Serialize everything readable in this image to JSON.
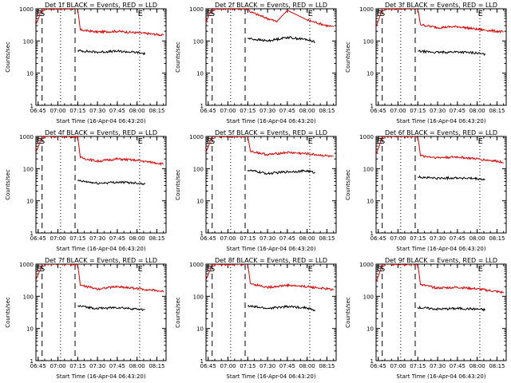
{
  "figure": {
    "xlabel_template": "Start Time (16-Apr-04 06:43:20)",
    "ylabel": "Counts/sec"
  },
  "colors": {
    "events": "#000000",
    "lld": "#e00000",
    "axis": "#000000"
  },
  "chart_data": [
    {
      "type": "line",
      "title": "Det 1f BLACK = Events, RED = LLD",
      "xlabel": "Start Time (16-Apr-04 06:43:20)",
      "ylabel": "Counts/sec",
      "x_ticks": [
        "06:45",
        "07:00",
        "07:15",
        "07:30",
        "07:45",
        "08:00",
        "08:15"
      ],
      "y_ticks": [
        "1",
        "10",
        "100",
        "1000"
      ],
      "y_scale": "log",
      "ylim": [
        1,
        1000
      ],
      "markers": [
        "E",
        "S",
        "E"
      ],
      "series": [
        {
          "color": "red",
          "x": [
            "06:43",
            "06:46",
            "06:48",
            "07:15",
            "07:17",
            "07:30",
            "07:45",
            "08:00",
            "08:15",
            "08:20"
          ],
          "values": [
            300,
            600,
            1000,
            1000,
            220,
            190,
            200,
            180,
            160,
            150
          ]
        },
        {
          "color": "black",
          "x": [
            "07:15",
            "07:30",
            "07:45",
            "08:00",
            "08:06"
          ],
          "values": [
            50,
            45,
            48,
            44,
            40
          ]
        }
      ]
    },
    {
      "type": "line",
      "title": "Det 2f BLACK = Events, RED = LLD",
      "xlabel": "Start Time (16-Apr-04 06:43:20)",
      "ylabel": "Counts/sec",
      "x_ticks": [
        "06:45",
        "07:00",
        "07:15",
        "07:30",
        "07:45",
        "08:00",
        "08:15"
      ],
      "y_ticks": [
        "1",
        "10",
        "100",
        "1000"
      ],
      "y_scale": "log",
      "ylim": [
        1,
        1000
      ],
      "markers": [
        "E",
        "S",
        "E"
      ],
      "series": [
        {
          "color": "red",
          "x": [
            "06:43",
            "06:46",
            "06:48",
            "07:15",
            "07:17",
            "07:30",
            "07:37",
            "07:45",
            "08:00",
            "08:15",
            "08:20"
          ],
          "values": [
            350,
            700,
            1000,
            1000,
            800,
            500,
            400,
            900,
            450,
            300,
            270
          ]
        },
        {
          "color": "black",
          "x": [
            "07:15",
            "07:30",
            "07:45",
            "08:00",
            "08:06"
          ],
          "values": [
            120,
            100,
            130,
            110,
            95
          ]
        }
      ]
    },
    {
      "type": "line",
      "title": "Det 3f BLACK = Events, RED = LLD",
      "xlabel": "Start Time (16-Apr-04 06:43:20)",
      "ylabel": "Counts/sec",
      "x_ticks": [
        "06:45",
        "07:00",
        "07:15",
        "07:30",
        "07:45",
        "08:00",
        "08:15"
      ],
      "y_ticks": [
        "1",
        "10",
        "100",
        "1000"
      ],
      "y_scale": "log",
      "ylim": [
        1,
        1000
      ],
      "markers": [
        "E",
        "S",
        "E"
      ],
      "series": [
        {
          "color": "red",
          "x": [
            "06:43",
            "06:46",
            "06:48",
            "07:15",
            "07:17",
            "07:30",
            "07:45",
            "08:00",
            "08:15",
            "08:20"
          ],
          "values": [
            250,
            550,
            1000,
            1000,
            320,
            260,
            280,
            230,
            200,
            190
          ]
        },
        {
          "color": "black",
          "x": [
            "07:15",
            "07:30",
            "07:45",
            "08:00",
            "08:06"
          ],
          "values": [
            48,
            44,
            46,
            42,
            38
          ]
        }
      ]
    },
    {
      "type": "line",
      "title": "Det 4f BLACK = Events, RED = LLD",
      "xlabel": "Start Time (16-Apr-04 06:43:20)",
      "ylabel": "Counts/sec",
      "x_ticks": [
        "06:45",
        "07:00",
        "07:15",
        "07:30",
        "07:45",
        "08:00",
        "08:15"
      ],
      "y_ticks": [
        "1",
        "10",
        "100",
        "1000"
      ],
      "y_scale": "log",
      "ylim": [
        1,
        1000
      ],
      "markers": [
        "E",
        "S",
        "E"
      ],
      "series": [
        {
          "color": "red",
          "x": [
            "06:43",
            "06:46",
            "06:48",
            "07:15",
            "07:17",
            "07:30",
            "07:45",
            "08:00",
            "08:15",
            "08:20"
          ],
          "values": [
            300,
            600,
            1000,
            1000,
            220,
            170,
            200,
            180,
            150,
            140
          ]
        },
        {
          "color": "black",
          "x": [
            "07:15",
            "07:30",
            "07:45",
            "08:00",
            "08:06"
          ],
          "values": [
            42,
            35,
            38,
            36,
            34
          ]
        }
      ]
    },
    {
      "type": "line",
      "title": "Det 5f BLACK = Events, RED = LLD",
      "xlabel": "Start Time (16-Apr-04 06:43:20)",
      "ylabel": "Counts/sec",
      "x_ticks": [
        "06:45",
        "07:00",
        "07:15",
        "07:30",
        "07:45",
        "08:00",
        "08:15"
      ],
      "y_ticks": [
        "1",
        "10",
        "100",
        "1000"
      ],
      "y_scale": "log",
      "ylim": [
        1,
        1000
      ],
      "markers": [
        "E",
        "S",
        "E"
      ],
      "series": [
        {
          "color": "red",
          "x": [
            "06:43",
            "06:46",
            "06:48",
            "07:15",
            "07:17",
            "07:30",
            "07:45",
            "08:00",
            "08:15",
            "08:20"
          ],
          "values": [
            300,
            600,
            1000,
            1000,
            350,
            270,
            320,
            290,
            250,
            230
          ]
        },
        {
          "color": "black",
          "x": [
            "07:15",
            "07:30",
            "07:45",
            "08:00",
            "08:06"
          ],
          "values": [
            90,
            70,
            80,
            85,
            75
          ]
        }
      ]
    },
    {
      "type": "line",
      "title": "Det 6f BLACK = Events, RED = LLD",
      "xlabel": "Start Time (16-Apr-04 06:43:20)",
      "ylabel": "Counts/sec",
      "x_ticks": [
        "06:45",
        "07:00",
        "07:15",
        "07:30",
        "07:45",
        "08:00",
        "08:15"
      ],
      "y_ticks": [
        "1",
        "10",
        "100",
        "1000"
      ],
      "y_scale": "log",
      "ylim": [
        1,
        1000
      ],
      "markers": [
        "E",
        "S",
        "E"
      ],
      "series": [
        {
          "color": "red",
          "x": [
            "06:43",
            "06:46",
            "06:48",
            "07:15",
            "07:17",
            "07:30",
            "07:45",
            "08:00",
            "08:15",
            "08:20"
          ],
          "values": [
            250,
            550,
            1000,
            1000,
            250,
            220,
            230,
            200,
            170,
            160
          ]
        },
        {
          "color": "black",
          "x": [
            "07:15",
            "07:30",
            "07:45",
            "08:00",
            "08:06"
          ],
          "values": [
            55,
            50,
            52,
            48,
            45
          ]
        }
      ]
    },
    {
      "type": "line",
      "title": "Det 7f BLACK = Events, RED = LLD",
      "xlabel": "Start Time (16-Apr-04 06:43:20)",
      "ylabel": "Counts/sec",
      "x_ticks": [
        "06:45",
        "07:00",
        "07:15",
        "07:30",
        "07:45",
        "08:00",
        "08:15"
      ],
      "y_ticks": [
        "1",
        "10",
        "100",
        "1000"
      ],
      "y_scale": "log",
      "ylim": [
        1,
        1000
      ],
      "markers": [
        "E",
        "S",
        "E"
      ],
      "series": [
        {
          "color": "red",
          "x": [
            "06:43",
            "06:46",
            "06:48",
            "07:15",
            "07:17",
            "07:30",
            "07:45",
            "08:00",
            "08:15",
            "08:20"
          ],
          "values": [
            300,
            600,
            1000,
            1000,
            220,
            170,
            200,
            175,
            150,
            140
          ]
        },
        {
          "color": "black",
          "x": [
            "07:15",
            "07:30",
            "07:45",
            "08:00",
            "08:06"
          ],
          "values": [
            50,
            42,
            45,
            40,
            38
          ]
        }
      ]
    },
    {
      "type": "line",
      "title": "Det 8f BLACK = Events, RED = LLD",
      "xlabel": "Start Time (16-Apr-04 06:43:20)",
      "ylabel": "Counts/sec",
      "x_ticks": [
        "06:45",
        "07:00",
        "07:15",
        "07:30",
        "07:45",
        "08:00",
        "08:15"
      ],
      "y_ticks": [
        "1",
        "10",
        "100",
        "1000"
      ],
      "y_scale": "log",
      "ylim": [
        1,
        1000
      ],
      "markers": [
        "E",
        "S",
        "E"
      ],
      "series": [
        {
          "color": "red",
          "x": [
            "06:43",
            "06:46",
            "06:48",
            "07:15",
            "07:17",
            "07:30",
            "07:45",
            "08:00",
            "08:15",
            "08:20"
          ],
          "values": [
            300,
            600,
            1000,
            1000,
            250,
            190,
            220,
            200,
            170,
            160
          ]
        },
        {
          "color": "black",
          "x": [
            "07:15",
            "07:30",
            "07:45",
            "08:00",
            "08:06"
          ],
          "values": [
            50,
            42,
            48,
            44,
            35
          ]
        }
      ]
    },
    {
      "type": "line",
      "title": "Det 9f BLACK = Events, RED = LLD",
      "xlabel": "Start Time (16-Apr-04 06:43:20)",
      "ylabel": "Counts/sec",
      "x_ticks": [
        "06:45",
        "07:00",
        "07:15",
        "07:30",
        "07:45",
        "08:00",
        "08:15"
      ],
      "y_ticks": [
        "1",
        "10",
        "100",
        "1000"
      ],
      "y_scale": "log",
      "ylim": [
        1,
        1000
      ],
      "markers": [
        "E",
        "S",
        "E"
      ],
      "series": [
        {
          "color": "red",
          "x": [
            "06:43",
            "06:46",
            "06:48",
            "07:15",
            "07:17",
            "07:30",
            "07:45",
            "08:00",
            "08:15",
            "08:20"
          ],
          "values": [
            250,
            550,
            1000,
            1000,
            230,
            180,
            190,
            170,
            140,
            130
          ]
        },
        {
          "color": "black",
          "x": [
            "07:15",
            "07:30",
            "07:45",
            "08:00",
            "08:06"
          ],
          "values": [
            45,
            40,
            42,
            40,
            38
          ]
        }
      ]
    }
  ]
}
